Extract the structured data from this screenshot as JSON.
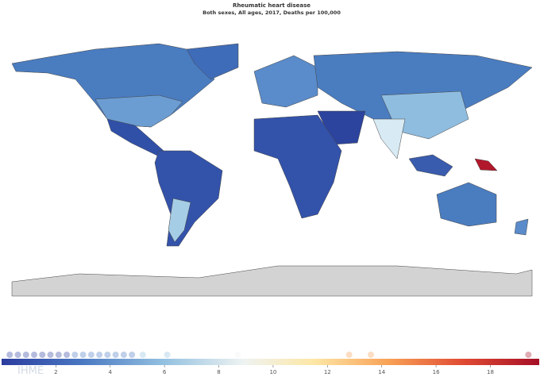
{
  "title": "Rheumatic heart disease",
  "subtitle": "Both sexes, All ages, 2017, Deaths per 100,000",
  "legend": {
    "range": [
      0,
      19.8
    ],
    "ticks": [
      2,
      4,
      6,
      8,
      10,
      12,
      14,
      16,
      18
    ],
    "points": [
      0.3,
      0.6,
      0.9,
      1.2,
      1.5,
      1.8,
      2.1,
      2.4,
      2.7,
      3.0,
      3.3,
      3.6,
      3.9,
      4.2,
      4.5,
      4.8,
      5.2,
      6.1,
      8.7,
      12.8,
      13.6,
      19.4
    ]
  },
  "logo": "IHME"
}
